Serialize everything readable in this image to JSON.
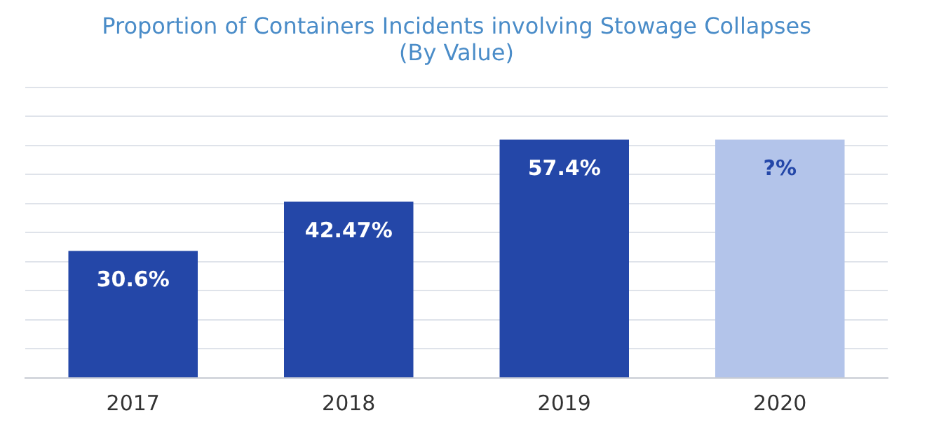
{
  "chart_data": {
    "type": "bar",
    "title": "Proportion of Containers Incidents involving Stowage Collapses",
    "subtitle": "(By Value)",
    "categories": [
      "2017",
      "2018",
      "2019",
      "2020"
    ],
    "values": [
      30.6,
      42.47,
      57.4,
      57.4
    ],
    "colors": [
      "#2447a8",
      "#2447a8",
      "#2447a8",
      "#b3c4ea"
    ],
    "value_labels": [
      "30.6%",
      "42.47%",
      "57.4%",
      "?%"
    ],
    "ylim": [
      0,
      70
    ],
    "yticks": [
      {
        "value": 0,
        "label": null
      },
      {
        "value": 7,
        "label": null
      },
      {
        "value": 14,
        "label": null
      },
      {
        "value": 21,
        "label": null
      },
      {
        "value": 28,
        "label": null
      },
      {
        "value": 35,
        "label": null
      },
      {
        "value": 42,
        "label": null
      },
      {
        "value": 49,
        "label": null
      },
      {
        "value": 56,
        "label": null
      },
      {
        "value": 63,
        "label": null
      },
      {
        "value": 70,
        "label": null
      }
    ],
    "grid": "y",
    "legend": false,
    "tick_labels": "x"
  }
}
